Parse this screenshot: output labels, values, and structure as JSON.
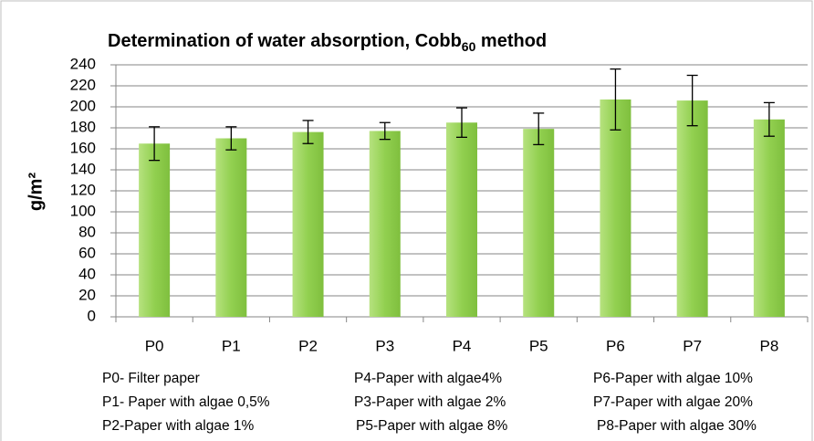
{
  "chart_data": {
    "type": "bar",
    "title": "Determination of water absorption, Cobb",
    "title_subscript": "60",
    "title_suffix": " method",
    "y_label": "g/m²",
    "categories": [
      "P0",
      "P1",
      "P2",
      "P3",
      "P4",
      "P5",
      "P6",
      "P7",
      "P8"
    ],
    "values": [
      165,
      170,
      176,
      177,
      185,
      179,
      207,
      206,
      188
    ],
    "errors": [
      16,
      11,
      11,
      8,
      14,
      15,
      29,
      24,
      16
    ],
    "color": "#92d050",
    "ylim": [
      0,
      240
    ],
    "yticks": [
      0,
      20,
      40,
      60,
      80,
      100,
      120,
      140,
      160,
      180,
      200,
      220,
      240
    ],
    "grid": true,
    "notes": [
      [
        "P0- Filter paper",
        "P4-Paper with algae4%",
        "P6-Paper with algae 10%"
      ],
      [
        "P1- Paper with algae 0,5%",
        "P3-Paper with algae 2%",
        "P7-Paper with algae 20%"
      ],
      [
        "P2-Paper with algae 1%",
        "P5-Paper with algae 8%",
        "P8-Paper with algae 30%"
      ]
    ]
  }
}
